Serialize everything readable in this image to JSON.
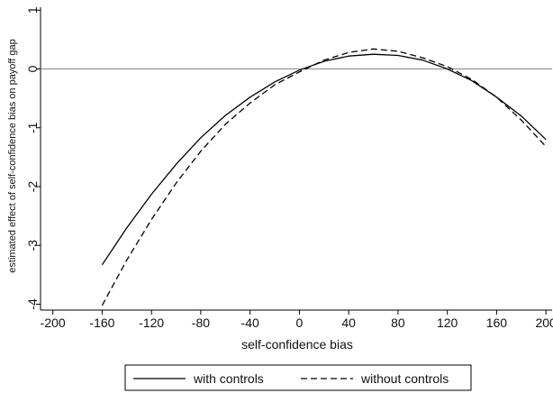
{
  "chart_data": {
    "type": "line",
    "title": "",
    "xlabel": "self-confidence bias",
    "ylabel": "estimated effect of self-confidence bias on payoff gap",
    "xlim": [
      -210,
      205
    ],
    "ylim": [
      -4.1,
      1.05
    ],
    "xticks": [
      -200,
      -160,
      -120,
      -80,
      -40,
      0,
      40,
      80,
      120,
      160,
      200
    ],
    "yticks": [
      -4,
      -3,
      -2,
      -1,
      0,
      1
    ],
    "reference_line_y": 0,
    "grid": false,
    "legend_position": "bottom",
    "x": [
      -160,
      -140,
      -120,
      -100,
      -80,
      -60,
      -40,
      -20,
      0,
      20,
      40,
      60,
      80,
      100,
      120,
      140,
      160,
      180,
      200
    ],
    "series": [
      {
        "name": "with controls",
        "dash": "solid",
        "values": [
          -3.33,
          -2.7,
          -2.13,
          -1.62,
          -1.17,
          -0.79,
          -0.48,
          -0.22,
          -0.02,
          0.13,
          0.22,
          0.25,
          0.23,
          0.15,
          0.0,
          -0.2,
          -0.48,
          -0.8,
          -1.2
        ]
      },
      {
        "name": "without controls",
        "dash": "dashed",
        "values": [
          -4.02,
          -3.25,
          -2.56,
          -1.94,
          -1.4,
          -0.94,
          -0.58,
          -0.27,
          -0.05,
          0.15,
          0.28,
          0.34,
          0.3,
          0.19,
          0.04,
          -0.18,
          -0.48,
          -0.87,
          -1.32
        ]
      }
    ]
  }
}
